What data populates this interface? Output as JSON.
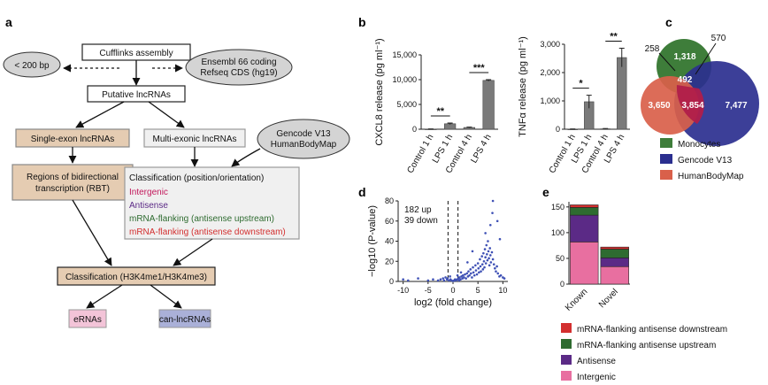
{
  "panels": {
    "a": "a",
    "b": "b",
    "c": "c",
    "d": "d",
    "e": "e"
  },
  "flow": {
    "cufflinks": "Cufflinks assembly",
    "lt200": "< 200 bp",
    "ensembl_l1": "Ensembl 66 coding",
    "ensembl_l2": "Refseq CDS (hg19)",
    "putative": "Putative lncRNAs",
    "single": "Single-exon lncRNAs",
    "multi": "Multi-exonic lncRNAs",
    "gencode_l1": "Gencode V13",
    "gencode_l2": "HumanBodyMap",
    "rbt_l1": "Regions of bidirectional",
    "rbt_l2": "transcription (RBT)",
    "classpos_title": "Classification (position/orientation)",
    "classpos_items": [
      {
        "label": "Intergenic",
        "color": "#c2185b"
      },
      {
        "label": "Antisense",
        "color": "#5b2a86"
      },
      {
        "label": "mRNA-flanking (antisense upstream)",
        "color": "#2e6b30"
      },
      {
        "label": "mRNA-flanking (antisense downstream)",
        "color": "#d32f2f"
      }
    ],
    "class_h3": "Classification (H3K4me1/H3K4me3)",
    "erna": "eRNAs",
    "canlnc": "can-lncRNAs"
  },
  "chart_data": [
    {
      "id": "b-cxcl8",
      "type": "bar",
      "categories": [
        "Control 1 h",
        "LPS 1 h",
        "Control 4 h",
        "LPS 4 h"
      ],
      "values": [
        40,
        1100,
        350,
        9850
      ],
      "errors": [
        20,
        150,
        80,
        150
      ],
      "ylabel": "CXCL8 release (pg ml⁻¹)",
      "ylim": [
        0,
        15000
      ],
      "yticks": [
        0,
        5000,
        10000,
        15000
      ],
      "ytick_labels": [
        "0",
        "5,000",
        "10,000",
        "15,000"
      ],
      "significance": [
        {
          "from": 0,
          "to": 1,
          "label": "**"
        },
        {
          "from": 2,
          "to": 3,
          "label": "***"
        }
      ]
    },
    {
      "id": "b-tnfa",
      "type": "bar",
      "categories": [
        "Control 1 h",
        "LPS 1 h",
        "Control 4 h",
        "LPS 4 h"
      ],
      "values": [
        5,
        970,
        15,
        2530
      ],
      "errors": [
        5,
        230,
        10,
        330
      ],
      "ylabel": "TNFα release (pg ml⁻¹)",
      "ylim": [
        0,
        3000
      ],
      "yticks": [
        0,
        1000,
        2000,
        3000
      ],
      "ytick_labels": [
        "0",
        "1,000",
        "2,000",
        "3,000"
      ],
      "significance": [
        {
          "from": 0,
          "to": 1,
          "label": "*"
        },
        {
          "from": 2,
          "to": 3,
          "label": "**"
        }
      ]
    },
    {
      "id": "c-venn",
      "type": "venn",
      "sets": [
        {
          "name": "Monocytes",
          "color": "#3e7d3a"
        },
        {
          "name": "Gencode V13",
          "color": "#2b2f8f"
        },
        {
          "name": "HumanBodyMap",
          "color": "#d9604a"
        }
      ],
      "regions": [
        {
          "label": "258",
          "where": "monocytes-bodymap"
        },
        {
          "label": "570",
          "where": "monocytes-gencode"
        },
        {
          "label": "1,318",
          "where": "monocytes-only"
        },
        {
          "label": "492",
          "where": "all-three"
        },
        {
          "label": "3,650",
          "where": "bodymap-only"
        },
        {
          "label": "3,854",
          "where": "gencode-bodymap"
        },
        {
          "label": "7,477",
          "where": "gencode-only"
        }
      ]
    },
    {
      "id": "d-volcano",
      "type": "scatter",
      "xlabel": "log2 (fold change)",
      "ylabel": "−log10 (P-value)",
      "xlim": [
        -11,
        11
      ],
      "ylim": [
        0,
        80
      ],
      "xticks": [
        -10,
        -5,
        0,
        5,
        10
      ],
      "yticks": [
        0,
        20,
        40,
        60,
        80
      ],
      "thresholds_x": [
        -1,
        1
      ],
      "annotation": [
        "182 up",
        "39 down"
      ],
      "color": "#3f51b5",
      "points": [
        [
          -10,
          2
        ],
        [
          -9,
          1
        ],
        [
          -7,
          3
        ],
        [
          -5,
          1
        ],
        [
          -4,
          2
        ],
        [
          -3,
          1
        ],
        [
          -2.5,
          2
        ],
        [
          -2,
          3
        ],
        [
          -1.8,
          1
        ],
        [
          -1.5,
          4
        ],
        [
          -1.2,
          2
        ],
        [
          -1.1,
          3
        ],
        [
          -0.8,
          1
        ],
        [
          -0.5,
          2
        ],
        [
          -0.3,
          1
        ],
        [
          0,
          0.5
        ],
        [
          0.2,
          1
        ],
        [
          0.4,
          2
        ],
        [
          0.6,
          1
        ],
        [
          0.8,
          2
        ],
        [
          1.1,
          3
        ],
        [
          1.3,
          4
        ],
        [
          1.5,
          2
        ],
        [
          1.7,
          5
        ],
        [
          1.9,
          3
        ],
        [
          2.0,
          6
        ],
        [
          2.2,
          4
        ],
        [
          2.4,
          7
        ],
        [
          2.6,
          3
        ],
        [
          2.8,
          8
        ],
        [
          3.0,
          5
        ],
        [
          3.1,
          10
        ],
        [
          3.3,
          6
        ],
        [
          3.5,
          12
        ],
        [
          3.6,
          8
        ],
        [
          3.8,
          4
        ],
        [
          4.0,
          14
        ],
        [
          4.1,
          9
        ],
        [
          4.3,
          6
        ],
        [
          4.5,
          16
        ],
        [
          4.6,
          11
        ],
        [
          4.8,
          7
        ],
        [
          5.0,
          18
        ],
        [
          5.1,
          13
        ],
        [
          5.2,
          9
        ],
        [
          5.4,
          22
        ],
        [
          5.5,
          15
        ],
        [
          5.6,
          10
        ],
        [
          5.8,
          25
        ],
        [
          5.9,
          17
        ],
        [
          6.0,
          12
        ],
        [
          6.1,
          28
        ],
        [
          6.2,
          20
        ],
        [
          6.3,
          14
        ],
        [
          6.4,
          32
        ],
        [
          6.5,
          24
        ],
        [
          6.6,
          18
        ],
        [
          6.7,
          36
        ],
        [
          6.8,
          27
        ],
        [
          6.9,
          21
        ],
        [
          7.0,
          40
        ],
        [
          7.1,
          30
        ],
        [
          7.2,
          23
        ],
        [
          7.3,
          16
        ],
        [
          7.4,
          33
        ],
        [
          7.5,
          26
        ],
        [
          7.6,
          19
        ],
        [
          7.8,
          29
        ],
        [
          8.0,
          22
        ],
        [
          8.2,
          17
        ],
        [
          8.4,
          13
        ],
        [
          8.6,
          10
        ],
        [
          8.8,
          15
        ],
        [
          9.0,
          8
        ],
        [
          9.3,
          5
        ],
        [
          9.6,
          6
        ],
        [
          10.0,
          4
        ],
        [
          10.3,
          3
        ],
        [
          7.5,
          56
        ],
        [
          8.0,
          80
        ],
        [
          7.9,
          68
        ],
        [
          8.9,
          60
        ],
        [
          6.5,
          48
        ],
        [
          9.4,
          42
        ],
        [
          3.9,
          30
        ],
        [
          2.9,
          19
        ],
        [
          1.6,
          9
        ],
        [
          0.9,
          6
        ],
        [
          -0.6,
          5
        ],
        [
          1.2,
          1
        ]
      ]
    },
    {
      "id": "e-stacked",
      "type": "bar",
      "stacked": true,
      "categories": [
        "Known",
        "Novel"
      ],
      "ylim": [
        0,
        160
      ],
      "yticks": [
        0,
        50,
        100,
        150
      ],
      "series": [
        {
          "name": "Intergenic",
          "color": "#e86fa0",
          "values": [
            82,
            34
          ]
        },
        {
          "name": "Antisense",
          "color": "#5b2a86",
          "values": [
            52,
            17
          ]
        },
        {
          "name": "mRNA-flanking antisense upstream",
          "color": "#2e6b30",
          "values": [
            15,
            17
          ]
        },
        {
          "name": "mRNA-flanking antisense downstream",
          "color": "#d32f2f",
          "values": [
            5,
            4
          ]
        }
      ],
      "legend_order": [
        "mRNA-flanking antisense downstream",
        "mRNA-flanking antisense upstream",
        "Antisense",
        "Intergenic"
      ]
    }
  ]
}
